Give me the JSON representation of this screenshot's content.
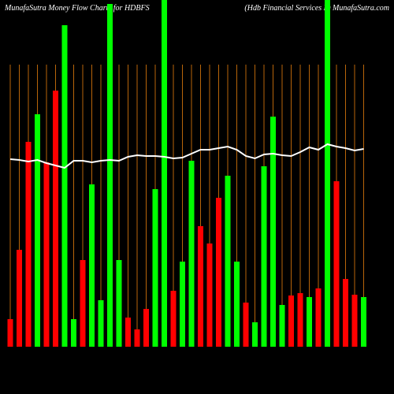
{
  "chart_data": {
    "type": "bar",
    "title": "MunafaSutra  Money Flow  Charts for HDBFS",
    "subtitle": "(Hdb Financial Services L) MunafaSutra.com",
    "categories": [
      null,
      null,
      null,
      null,
      null,
      null,
      null,
      null,
      null,
      null,
      null,
      null,
      null,
      null,
      null,
      null,
      null,
      null,
      null,
      null,
      null,
      null,
      null,
      null,
      null,
      null,
      null,
      null,
      null,
      null,
      null,
      null,
      null,
      null,
      null,
      null,
      null,
      null,
      null,
      null
    ],
    "values": [
      35,
      123,
      260,
      295,
      234,
      325,
      408,
      35,
      110,
      206,
      59,
      435,
      110,
      37,
      22,
      48,
      200,
      440,
      71,
      108,
      236,
      153,
      131,
      189,
      217,
      108,
      56,
      31,
      229,
      292,
      53,
      65,
      68,
      63,
      74,
      440,
      210,
      86,
      66,
      63
    ],
    "colors": [
      "#ff0000",
      "#ff0000",
      "#ff0000",
      "#00ff00",
      "#ff0000",
      "#ff0000",
      "#00ff00",
      "#00ff00",
      "#ff0000",
      "#00ff00",
      "#00ff00",
      "#00ff00",
      "#00ff00",
      "#ff0000",
      "#ff0000",
      "#ff0000",
      "#00ff00",
      "#00ff00",
      "#ff0000",
      "#00ff00",
      "#00ff00",
      "#ff0000",
      "#ff0000",
      "#ff0000",
      "#00ff00",
      "#00ff00",
      "#ff0000",
      "#00ff00",
      "#00ff00",
      "#00ff00",
      "#00ff00",
      "#ff0000",
      "#ff0000",
      "#00ff00",
      "#ff0000",
      "#00ff00",
      "#ff0000",
      "#ff0000",
      "#ff0000",
      "#00ff00"
    ],
    "line": {
      "color": "#ffffff",
      "values": [
        238,
        237,
        235,
        237,
        233,
        230,
        227,
        236,
        236,
        234,
        236,
        237,
        236,
        241,
        243,
        242,
        242,
        241,
        239,
        240,
        245,
        250,
        250,
        252,
        254,
        250,
        242,
        239,
        244,
        245,
        243,
        242,
        247,
        253,
        250,
        257,
        254,
        252,
        249,
        251
      ]
    },
    "ylim": [
      0,
      440
    ],
    "grid": true,
    "grid_color": "#b8650a"
  }
}
